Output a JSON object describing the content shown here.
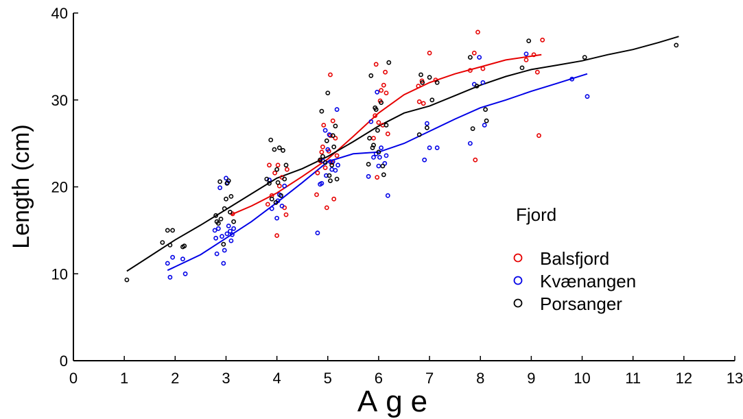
{
  "chart_data": {
    "type": "scatter",
    "xlabel": "Age",
    "ylabel": "Length (cm)",
    "xlim": [
      0,
      13
    ],
    "ylim": [
      0,
      40
    ],
    "x_ticks": [
      0,
      1,
      2,
      3,
      4,
      5,
      6,
      7,
      8,
      9,
      10,
      11,
      12,
      13
    ],
    "y_ticks": [
      0,
      10,
      20,
      30,
      40
    ],
    "grid": false,
    "legend": {
      "title": "Fjord",
      "placement": "right"
    },
    "series": [
      {
        "name": "Balsfjord",
        "color": "#e60000",
        "marker": "open-circle",
        "points": [
          [
            3.13,
            16.9
          ],
          [
            3.85,
            22.5
          ],
          [
            3.82,
            18.0
          ],
          [
            3.9,
            19.0
          ],
          [
            3.96,
            21.6
          ],
          [
            4.0,
            14.4
          ],
          [
            4.02,
            22.5
          ],
          [
            4.05,
            20.1
          ],
          [
            4.1,
            21.1
          ],
          [
            4.15,
            17.6
          ],
          [
            4.18,
            16.8
          ],
          [
            4.2,
            22.0
          ],
          [
            4.78,
            19.1
          ],
          [
            4.8,
            21.6
          ],
          [
            4.85,
            23.0
          ],
          [
            4.88,
            24.0
          ],
          [
            4.9,
            24.6
          ],
          [
            4.92,
            27.1
          ],
          [
            4.95,
            22.2
          ],
          [
            4.98,
            17.6
          ],
          [
            5.02,
            24.1
          ],
          [
            5.05,
            25.9
          ],
          [
            5.05,
            32.9
          ],
          [
            5.08,
            22.8
          ],
          [
            5.1,
            27.6
          ],
          [
            5.12,
            18.6
          ],
          [
            5.15,
            25.6
          ],
          [
            5.18,
            23.6
          ],
          [
            5.9,
            25.6
          ],
          [
            5.93,
            28.2
          ],
          [
            5.95,
            34.1
          ],
          [
            5.97,
            21.1
          ],
          [
            6.0,
            27.4
          ],
          [
            6.03,
            29.9
          ],
          [
            6.05,
            31.1
          ],
          [
            6.08,
            27.1
          ],
          [
            6.1,
            31.7
          ],
          [
            6.13,
            33.2
          ],
          [
            6.15,
            30.8
          ],
          [
            6.18,
            26.1
          ],
          [
            6.78,
            31.6
          ],
          [
            6.8,
            29.8
          ],
          [
            6.85,
            32.2
          ],
          [
            6.88,
            29.6
          ],
          [
            7.0,
            35.4
          ],
          [
            7.12,
            32.3
          ],
          [
            7.8,
            33.4
          ],
          [
            7.88,
            35.4
          ],
          [
            7.9,
            23.1
          ],
          [
            7.95,
            37.8
          ],
          [
            8.05,
            33.6
          ],
          [
            8.9,
            34.6
          ],
          [
            9.05,
            35.2
          ],
          [
            9.12,
            33.2
          ],
          [
            9.15,
            25.9
          ],
          [
            9.22,
            36.9
          ]
        ],
        "trend": [
          [
            3.1,
            16.8
          ],
          [
            3.5,
            17.8
          ],
          [
            4.0,
            19.3
          ],
          [
            4.5,
            21.2
          ],
          [
            5.0,
            23.2
          ],
          [
            5.5,
            25.8
          ],
          [
            6.0,
            28.5
          ],
          [
            6.5,
            30.6
          ],
          [
            7.0,
            32.0
          ],
          [
            7.5,
            33.0
          ],
          [
            8.0,
            33.8
          ],
          [
            8.5,
            34.6
          ],
          [
            9.2,
            35.2
          ]
        ]
      },
      {
        "name": "Kvænangen",
        "color": "#0000e6",
        "marker": "open-circle",
        "points": [
          [
            1.85,
            11.2
          ],
          [
            1.9,
            9.6
          ],
          [
            1.95,
            11.9
          ],
          [
            2.15,
            11.7
          ],
          [
            2.2,
            10.0
          ],
          [
            2.78,
            15.0
          ],
          [
            2.8,
            14.1
          ],
          [
            2.82,
            12.3
          ],
          [
            2.85,
            15.2
          ],
          [
            2.88,
            19.9
          ],
          [
            2.92,
            14.3
          ],
          [
            2.95,
            11.2
          ],
          [
            2.97,
            12.7
          ],
          [
            3.0,
            21.0
          ],
          [
            3.02,
            14.6
          ],
          [
            3.03,
            20.5
          ],
          [
            3.05,
            15.5
          ],
          [
            3.08,
            14.9
          ],
          [
            3.1,
            13.8
          ],
          [
            3.12,
            14.5
          ],
          [
            3.15,
            15.2
          ],
          [
            3.85,
            20.8
          ],
          [
            3.9,
            17.5
          ],
          [
            4.0,
            16.4
          ],
          [
            4.02,
            18.4
          ],
          [
            4.05,
            19.1
          ],
          [
            4.1,
            17.8
          ],
          [
            4.15,
            20.1
          ],
          [
            4.8,
            14.7
          ],
          [
            4.85,
            20.3
          ],
          [
            4.88,
            20.4
          ],
          [
            4.9,
            23.0
          ],
          [
            4.95,
            26.5
          ],
          [
            4.97,
            21.3
          ],
          [
            5.0,
            24.3
          ],
          [
            5.03,
            26.0
          ],
          [
            5.05,
            22.9
          ],
          [
            5.08,
            22.0
          ],
          [
            5.1,
            22.9
          ],
          [
            5.15,
            21.9
          ],
          [
            5.18,
            28.9
          ],
          [
            5.2,
            22.5
          ],
          [
            5.8,
            21.2
          ],
          [
            5.85,
            27.5
          ],
          [
            5.9,
            23.4
          ],
          [
            5.95,
            23.8
          ],
          [
            5.97,
            30.9
          ],
          [
            6.0,
            22.4
          ],
          [
            6.02,
            23.4
          ],
          [
            6.05,
            24.5
          ],
          [
            6.12,
            22.7
          ],
          [
            6.15,
            23.6
          ],
          [
            6.18,
            19.0
          ],
          [
            6.9,
            23.1
          ],
          [
            6.95,
            27.3
          ],
          [
            7.0,
            24.5
          ],
          [
            7.15,
            24.5
          ],
          [
            7.8,
            25.0
          ],
          [
            7.88,
            31.8
          ],
          [
            7.98,
            34.9
          ],
          [
            8.05,
            32.0
          ],
          [
            8.08,
            27.1
          ],
          [
            8.9,
            35.3
          ],
          [
            9.8,
            32.4
          ],
          [
            10.1,
            30.4
          ]
        ],
        "trend": [
          [
            1.85,
            10.4
          ],
          [
            2.5,
            12.2
          ],
          [
            3.0,
            14.1
          ],
          [
            3.5,
            16.0
          ],
          [
            4.0,
            18.2
          ],
          [
            4.5,
            20.5
          ],
          [
            5.0,
            22.9
          ],
          [
            5.5,
            23.8
          ],
          [
            6.0,
            24.0
          ],
          [
            6.5,
            25.0
          ],
          [
            7.0,
            26.4
          ],
          [
            7.5,
            27.8
          ],
          [
            8.0,
            29.1
          ],
          [
            8.5,
            30.0
          ],
          [
            9.0,
            31.0
          ],
          [
            9.5,
            31.9
          ],
          [
            10.1,
            33.0
          ]
        ]
      },
      {
        "name": "Porsanger",
        "color": "#000000",
        "marker": "open-circle",
        "points": [
          [
            1.05,
            9.3
          ],
          [
            1.75,
            13.6
          ],
          [
            1.85,
            15.0
          ],
          [
            1.9,
            13.3
          ],
          [
            1.95,
            15.0
          ],
          [
            2.15,
            13.1
          ],
          [
            2.18,
            13.2
          ],
          [
            2.8,
            16.7
          ],
          [
            2.82,
            16.0
          ],
          [
            2.85,
            15.8
          ],
          [
            2.88,
            20.6
          ],
          [
            2.9,
            16.3
          ],
          [
            2.95,
            13.4
          ],
          [
            2.97,
            17.5
          ],
          [
            3.0,
            18.6
          ],
          [
            3.02,
            20.4
          ],
          [
            3.05,
            20.7
          ],
          [
            3.08,
            17.1
          ],
          [
            3.1,
            18.9
          ],
          [
            3.15,
            16.0
          ],
          [
            3.8,
            20.9
          ],
          [
            3.85,
            20.4
          ],
          [
            3.88,
            25.4
          ],
          [
            3.9,
            18.6
          ],
          [
            3.95,
            24.3
          ],
          [
            3.98,
            18.2
          ],
          [
            4.0,
            22.0
          ],
          [
            4.02,
            20.5
          ],
          [
            4.05,
            24.5
          ],
          [
            4.08,
            19.0
          ],
          [
            4.12,
            24.2
          ],
          [
            4.15,
            20.9
          ],
          [
            4.18,
            22.5
          ],
          [
            4.85,
            23.1
          ],
          [
            4.88,
            28.7
          ],
          [
            4.9,
            23.5
          ],
          [
            4.95,
            22.8
          ],
          [
            4.98,
            25.3
          ],
          [
            5.0,
            30.8
          ],
          [
            5.03,
            21.3
          ],
          [
            5.05,
            20.7
          ],
          [
            5.08,
            22.5
          ],
          [
            5.1,
            25.9
          ],
          [
            5.12,
            24.6
          ],
          [
            5.15,
            27.0
          ],
          [
            5.18,
            20.9
          ],
          [
            5.8,
            22.6
          ],
          [
            5.82,
            25.6
          ],
          [
            5.85,
            32.8
          ],
          [
            5.88,
            24.5
          ],
          [
            5.9,
            24.8
          ],
          [
            5.93,
            29.1
          ],
          [
            5.95,
            28.9
          ],
          [
            5.98,
            26.5
          ],
          [
            6.0,
            24.0
          ],
          [
            6.05,
            29.7
          ],
          [
            6.08,
            22.4
          ],
          [
            6.1,
            21.4
          ],
          [
            6.15,
            27.1
          ],
          [
            6.2,
            34.3
          ],
          [
            6.8,
            26.0
          ],
          [
            6.83,
            32.9
          ],
          [
            6.86,
            32.0
          ],
          [
            6.95,
            26.8
          ],
          [
            7.0,
            32.6
          ],
          [
            7.05,
            30.0
          ],
          [
            7.15,
            32.0
          ],
          [
            7.8,
            34.9
          ],
          [
            7.85,
            26.7
          ],
          [
            7.93,
            31.6
          ],
          [
            8.1,
            28.9
          ],
          [
            8.12,
            27.6
          ],
          [
            8.82,
            33.7
          ],
          [
            8.95,
            36.8
          ],
          [
            10.05,
            34.9
          ],
          [
            11.85,
            36.3
          ]
        ],
        "trend": [
          [
            1.05,
            10.3
          ],
          [
            1.5,
            12.0
          ],
          [
            2.0,
            13.9
          ],
          [
            2.5,
            15.6
          ],
          [
            3.0,
            17.4
          ],
          [
            3.5,
            19.2
          ],
          [
            4.0,
            21.0
          ],
          [
            4.5,
            22.1
          ],
          [
            5.0,
            23.5
          ],
          [
            5.5,
            25.2
          ],
          [
            6.0,
            27.0
          ],
          [
            6.5,
            28.5
          ],
          [
            7.0,
            29.3
          ],
          [
            7.5,
            30.5
          ],
          [
            8.0,
            31.7
          ],
          [
            8.5,
            32.7
          ],
          [
            9.0,
            33.5
          ],
          [
            9.5,
            34.0
          ],
          [
            10.0,
            34.5
          ],
          [
            10.5,
            35.2
          ],
          [
            11.0,
            35.8
          ],
          [
            11.5,
            36.6
          ],
          [
            11.9,
            37.3
          ]
        ]
      }
    ]
  }
}
